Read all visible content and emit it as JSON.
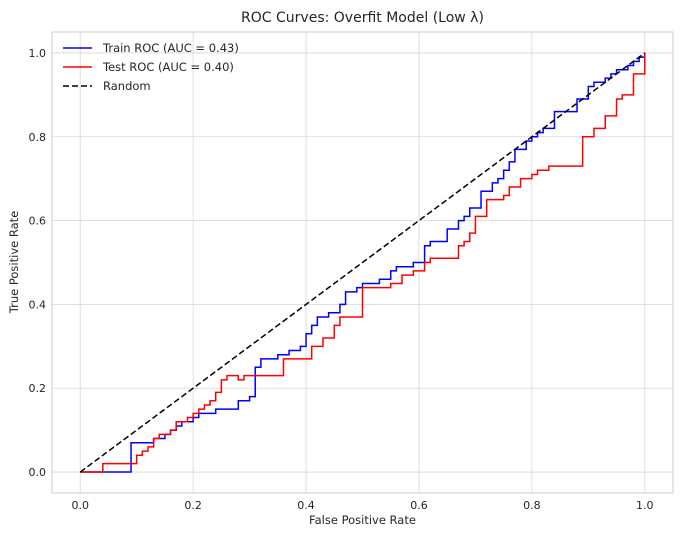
{
  "chart_data": {
    "type": "line",
    "title": "ROC Curves: Overfit Model (Low λ)",
    "xlabel": "False Positive Rate",
    "ylabel": "True Positive Rate",
    "xlim": [
      -0.05,
      1.05
    ],
    "ylim": [
      -0.05,
      1.05
    ],
    "xticks": [
      0.0,
      0.2,
      0.4,
      0.6,
      0.8,
      1.0
    ],
    "yticks": [
      0.0,
      0.2,
      0.4,
      0.6,
      0.8,
      1.0
    ],
    "xtick_labels": [
      "0.0",
      "0.2",
      "0.4",
      "0.6",
      "0.8",
      "1.0"
    ],
    "ytick_labels": [
      "0.0",
      "0.2",
      "0.4",
      "0.6",
      "0.8",
      "1.0"
    ],
    "grid": true,
    "legend_position": "top-left",
    "series": [
      {
        "name": "Train ROC (AUC = 0.43)",
        "color": "#0000ff",
        "style": "solid",
        "x": [
          0.0,
          0.09,
          0.09,
          0.13,
          0.13,
          0.15,
          0.15,
          0.16,
          0.16,
          0.17,
          0.17,
          0.18,
          0.18,
          0.2,
          0.2,
          0.21,
          0.21,
          0.24,
          0.24,
          0.28,
          0.28,
          0.3,
          0.3,
          0.31,
          0.31,
          0.32,
          0.32,
          0.35,
          0.35,
          0.37,
          0.37,
          0.39,
          0.39,
          0.4,
          0.4,
          0.41,
          0.41,
          0.42,
          0.42,
          0.44,
          0.44,
          0.46,
          0.46,
          0.47,
          0.47,
          0.49,
          0.49,
          0.5,
          0.5,
          0.53,
          0.53,
          0.55,
          0.55,
          0.56,
          0.56,
          0.59,
          0.59,
          0.61,
          0.61,
          0.62,
          0.62,
          0.65,
          0.65,
          0.67,
          0.67,
          0.68,
          0.68,
          0.69,
          0.69,
          0.71,
          0.71,
          0.73,
          0.73,
          0.74,
          0.74,
          0.75,
          0.75,
          0.76,
          0.76,
          0.77,
          0.77,
          0.79,
          0.79,
          0.8,
          0.8,
          0.81,
          0.81,
          0.82,
          0.82,
          0.84,
          0.84,
          0.88,
          0.88,
          0.9,
          0.9,
          0.91,
          0.91,
          0.93,
          0.93,
          0.94,
          0.94,
          0.95,
          0.95,
          0.97,
          0.97,
          0.98,
          0.98,
          0.99,
          0.99,
          1.0,
          1.0
        ],
        "y": [
          0.0,
          0.0,
          0.07,
          0.07,
          0.08,
          0.08,
          0.09,
          0.09,
          0.1,
          0.1,
          0.11,
          0.11,
          0.12,
          0.12,
          0.13,
          0.13,
          0.14,
          0.14,
          0.15,
          0.15,
          0.17,
          0.17,
          0.18,
          0.18,
          0.25,
          0.25,
          0.27,
          0.27,
          0.28,
          0.28,
          0.29,
          0.29,
          0.3,
          0.3,
          0.33,
          0.33,
          0.35,
          0.35,
          0.37,
          0.37,
          0.38,
          0.38,
          0.4,
          0.4,
          0.43,
          0.43,
          0.44,
          0.44,
          0.45,
          0.45,
          0.46,
          0.46,
          0.48,
          0.48,
          0.49,
          0.49,
          0.5,
          0.5,
          0.54,
          0.54,
          0.55,
          0.55,
          0.58,
          0.58,
          0.6,
          0.6,
          0.61,
          0.61,
          0.63,
          0.63,
          0.67,
          0.67,
          0.69,
          0.69,
          0.7,
          0.7,
          0.72,
          0.72,
          0.74,
          0.74,
          0.77,
          0.77,
          0.79,
          0.79,
          0.8,
          0.8,
          0.81,
          0.81,
          0.82,
          0.82,
          0.86,
          0.86,
          0.89,
          0.89,
          0.92,
          0.92,
          0.93,
          0.93,
          0.94,
          0.94,
          0.95,
          0.95,
          0.96,
          0.96,
          0.97,
          0.97,
          0.98,
          0.98,
          0.99,
          0.99,
          1.0
        ]
      },
      {
        "name": "Test ROC (AUC = 0.40)",
        "color": "#ff0000",
        "style": "solid",
        "x": [
          0.0,
          0.04,
          0.04,
          0.1,
          0.1,
          0.11,
          0.11,
          0.12,
          0.12,
          0.13,
          0.13,
          0.14,
          0.14,
          0.16,
          0.16,
          0.17,
          0.17,
          0.19,
          0.19,
          0.2,
          0.2,
          0.21,
          0.21,
          0.22,
          0.22,
          0.23,
          0.23,
          0.24,
          0.24,
          0.25,
          0.25,
          0.26,
          0.26,
          0.28,
          0.28,
          0.29,
          0.29,
          0.36,
          0.36,
          0.41,
          0.41,
          0.43,
          0.43,
          0.45,
          0.45,
          0.46,
          0.46,
          0.5,
          0.5,
          0.55,
          0.55,
          0.57,
          0.57,
          0.59,
          0.59,
          0.61,
          0.61,
          0.62,
          0.62,
          0.67,
          0.67,
          0.68,
          0.68,
          0.69,
          0.69,
          0.7,
          0.7,
          0.72,
          0.72,
          0.75,
          0.75,
          0.76,
          0.76,
          0.78,
          0.78,
          0.8,
          0.8,
          0.81,
          0.81,
          0.83,
          0.83,
          0.89,
          0.89,
          0.91,
          0.91,
          0.93,
          0.93,
          0.95,
          0.95,
          0.96,
          0.96,
          0.98,
          0.98,
          1.0,
          1.0
        ],
        "y": [
          0.0,
          0.0,
          0.02,
          0.02,
          0.04,
          0.04,
          0.05,
          0.05,
          0.06,
          0.06,
          0.08,
          0.08,
          0.09,
          0.09,
          0.1,
          0.1,
          0.12,
          0.12,
          0.13,
          0.13,
          0.14,
          0.14,
          0.15,
          0.15,
          0.16,
          0.16,
          0.17,
          0.17,
          0.19,
          0.19,
          0.22,
          0.22,
          0.23,
          0.23,
          0.22,
          0.22,
          0.23,
          0.23,
          0.27,
          0.27,
          0.3,
          0.3,
          0.32,
          0.32,
          0.35,
          0.35,
          0.37,
          0.37,
          0.44,
          0.44,
          0.45,
          0.45,
          0.47,
          0.47,
          0.48,
          0.48,
          0.5,
          0.5,
          0.51,
          0.51,
          0.54,
          0.54,
          0.55,
          0.55,
          0.57,
          0.57,
          0.61,
          0.61,
          0.65,
          0.65,
          0.66,
          0.66,
          0.68,
          0.68,
          0.7,
          0.7,
          0.71,
          0.71,
          0.72,
          0.72,
          0.73,
          0.73,
          0.8,
          0.8,
          0.82,
          0.82,
          0.85,
          0.85,
          0.89,
          0.89,
          0.9,
          0.9,
          0.95,
          0.95,
          1.0
        ]
      },
      {
        "name": "Random",
        "color": "#000000",
        "style": "dashed",
        "x": [
          0.0,
          1.0
        ],
        "y": [
          0.0,
          1.0
        ]
      }
    ]
  }
}
